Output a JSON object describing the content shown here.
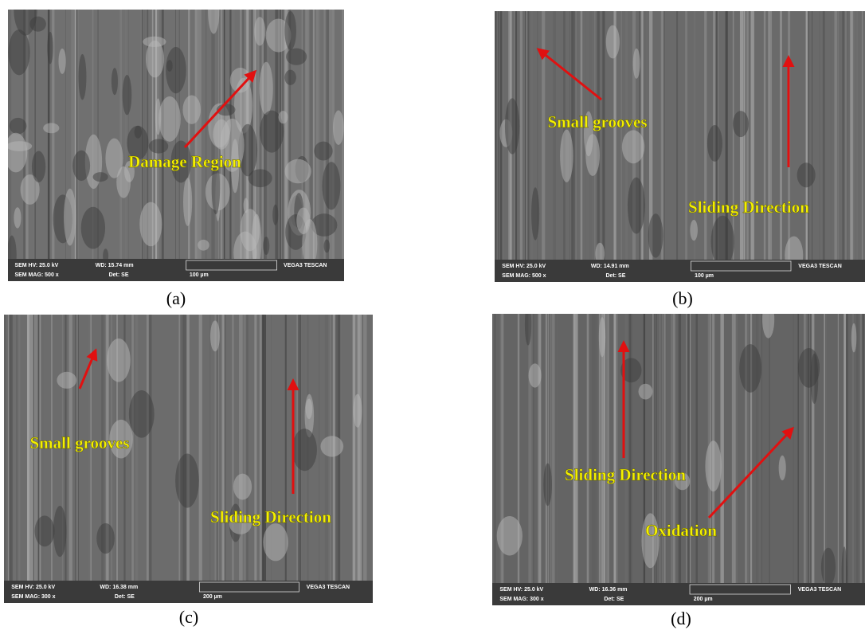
{
  "panels": [
    {
      "caption": "(a)",
      "annotations": [
        "Damage Region"
      ],
      "info": {
        "hv": "SEM HV: 25.0 kV",
        "wd": "WD: 15.74 mm",
        "brand": "VEGA3 TESCAN",
        "mag": "SEM MAG: 500 x",
        "det": "Det: SE",
        "scale": "100 µm"
      }
    },
    {
      "caption": "(b)",
      "annotations": [
        "Small grooves",
        "Sliding Direction"
      ],
      "info": {
        "hv": "SEM HV: 25.0 kV",
        "wd": "WD: 14.91 mm",
        "brand": "VEGA3 TESCAN",
        "mag": "SEM MAG: 500 x",
        "det": "Det: SE",
        "scale": "100 µm"
      }
    },
    {
      "caption": "(c)",
      "annotations": [
        "Small grooves",
        "Sliding Direction"
      ],
      "info": {
        "hv": "SEM HV: 25.0 kV",
        "wd": "WD: 16.38 mm",
        "brand": "VEGA3 TESCAN",
        "mag": "SEM MAG: 300 x",
        "det": "Det: SE",
        "scale": "200 µm"
      }
    },
    {
      "caption": "(d)",
      "annotations": [
        "Sliding Direction",
        "Oxidation"
      ],
      "info": {
        "hv": "SEM HV: 25.0 kV",
        "wd": "WD: 16.36 mm",
        "brand": "VEGA3 TESCAN",
        "mag": "SEM MAG: 300 x",
        "det": "Det: SE",
        "scale": "200 µm"
      }
    }
  ]
}
